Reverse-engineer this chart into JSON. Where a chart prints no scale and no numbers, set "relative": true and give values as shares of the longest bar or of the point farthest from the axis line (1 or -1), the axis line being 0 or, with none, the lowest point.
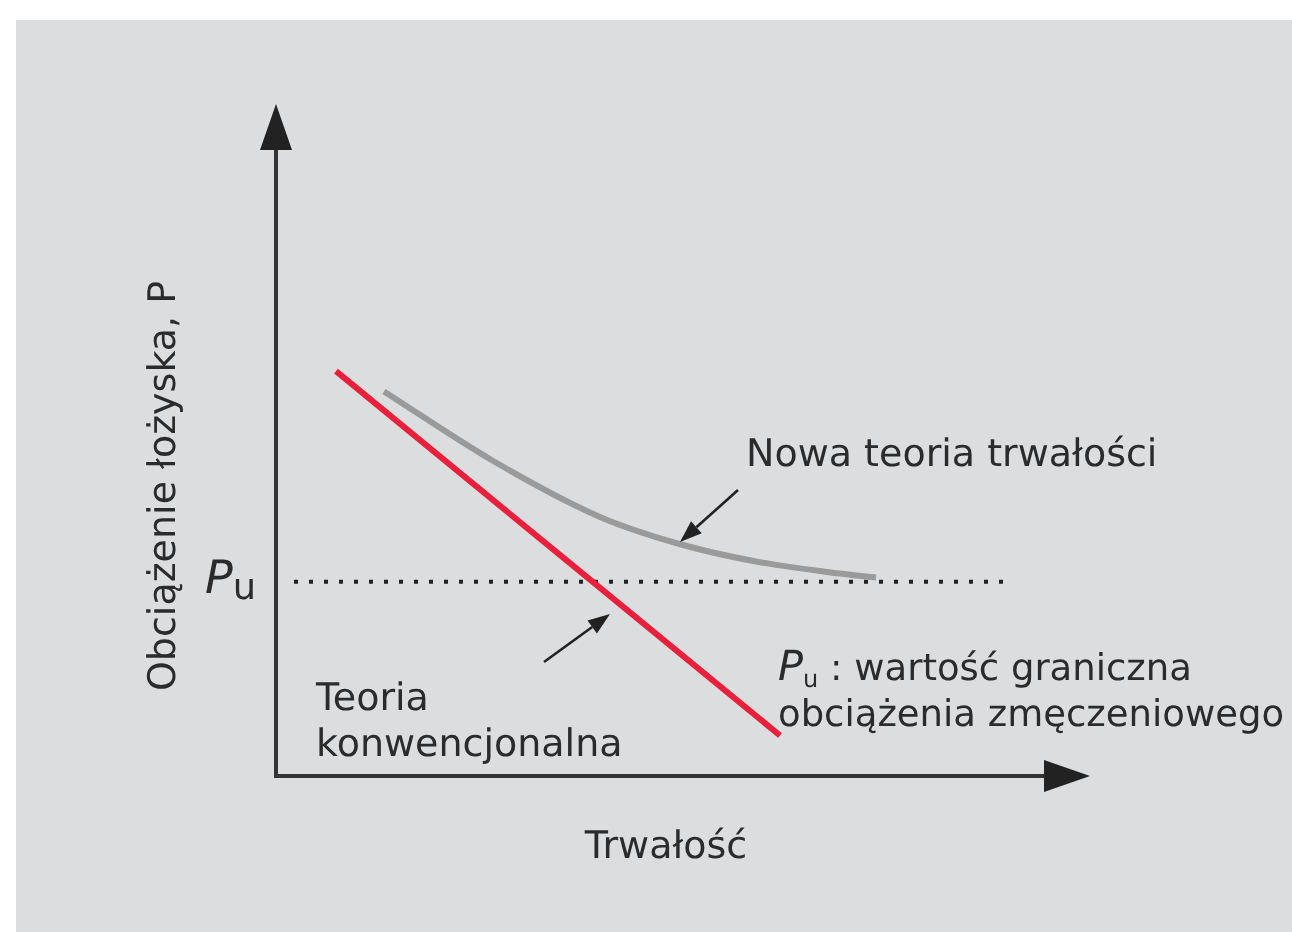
{
  "chart_data": {
    "type": "line",
    "relative": true,
    "marker": "none",
    "xlabel": "Trwałość",
    "ylabel": "Obciążenie łożyska, P",
    "categories": [
      null,
      null,
      null,
      null,
      null,
      null,
      null,
      null,
      null,
      null,
      null,
      null,
      null,
      null,
      null,
      null,
      null,
      null,
      null,
      null,
      null,
      null,
      null,
      null,
      null,
      null,
      null,
      null,
      null,
      null,
      null,
      null,
      null,
      null,
      null,
      null,
      null,
      null,
      null,
      null,
      null,
      null,
      null,
      null,
      null,
      null,
      null,
      null,
      null,
      null,
      null,
      null,
      null,
      null,
      null,
      null,
      null,
      null,
      null,
      null,
      null,
      null
    ],
    "series": [
      {
        "color": "#e8203c",
        "values": [
          null,
          null,
          null,
          null,
          null,
          1,
          null,
          null,
          null,
          null,
          null,
          null,
          null,
          null,
          null,
          null,
          null,
          null,
          null,
          null,
          null,
          null,
          null,
          null,
          null,
          null,
          null,
          null,
          null,
          null,
          null,
          null,
          null,
          null,
          null,
          null,
          null,
          null,
          null,
          null,
          null,
          null,
          0.1,
          null,
          null,
          null,
          null,
          null,
          null,
          null,
          null,
          null,
          null,
          null,
          null,
          null,
          null,
          null,
          null,
          null,
          null,
          null
        ]
      },
      {
        "color": "#9a9a9a",
        "values": [
          null,
          null,
          null,
          null,
          null,
          null,
          null,
          null,
          null,
          0.95,
          null,
          null,
          null,
          null,
          null,
          null,
          null,
          null,
          0.78,
          null,
          null,
          null,
          null,
          null,
          null,
          null,
          null,
          0.64,
          null,
          null,
          null,
          null,
          null,
          null,
          0.57,
          null,
          null,
          null,
          null,
          null,
          0.53,
          null,
          null,
          null,
          null,
          null,
          null,
          0.5,
          null,
          null,
          0.49,
          null,
          null,
          null,
          null,
          null,
          null,
          null,
          null,
          null,
          null,
          null
        ]
      }
    ],
    "ref_lines": [
      {
        "axis": "y",
        "value": 0.48,
        "label": "P$_{u}$",
        "color": "#222222",
        "line_style": "dotted"
      }
    ],
    "annotations": [
      "Nowa teoria trwałości",
      "P$_{u}$ : wartość graniczna obciążenia zmęczeniowego",
      "Teoria konwencjonalna"
    ]
  }
}
